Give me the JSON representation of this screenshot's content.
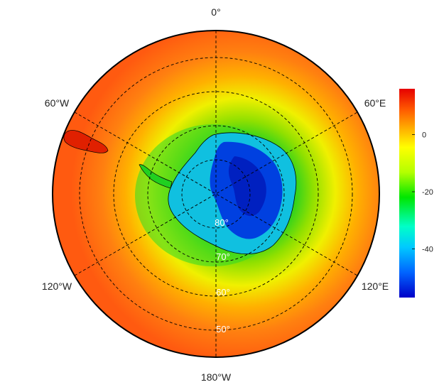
{
  "map": {
    "projection": "south-polar-stereographic",
    "lon_labels": {
      "top": "0°",
      "upper_left": "60°W",
      "upper_right": "60°E",
      "lower_left": "120°W",
      "lower_right": "120°E",
      "bottom": "180°W"
    },
    "lat_labels": [
      "80°",
      "70°",
      "60°",
      "50°"
    ],
    "gridlines": "dashed",
    "colors": {
      "outer_field": "#ff6a10",
      "mid_field": "#ffe000",
      "inner_field": "#20d020",
      "cold_core": "#0020d0",
      "frame": "#000000"
    }
  },
  "colorbar": {
    "tick_labels": [
      "0",
      "-20",
      "-40"
    ],
    "tick_values": [
      0,
      -20,
      -40
    ],
    "range": [
      -57,
      16
    ],
    "colors": [
      "#e60000",
      "#ff5a00",
      "#ffa500",
      "#ffff00",
      "#b4ff00",
      "#00e600",
      "#00ffc8",
      "#00c8ff",
      "#0064ff",
      "#0000c8"
    ]
  }
}
